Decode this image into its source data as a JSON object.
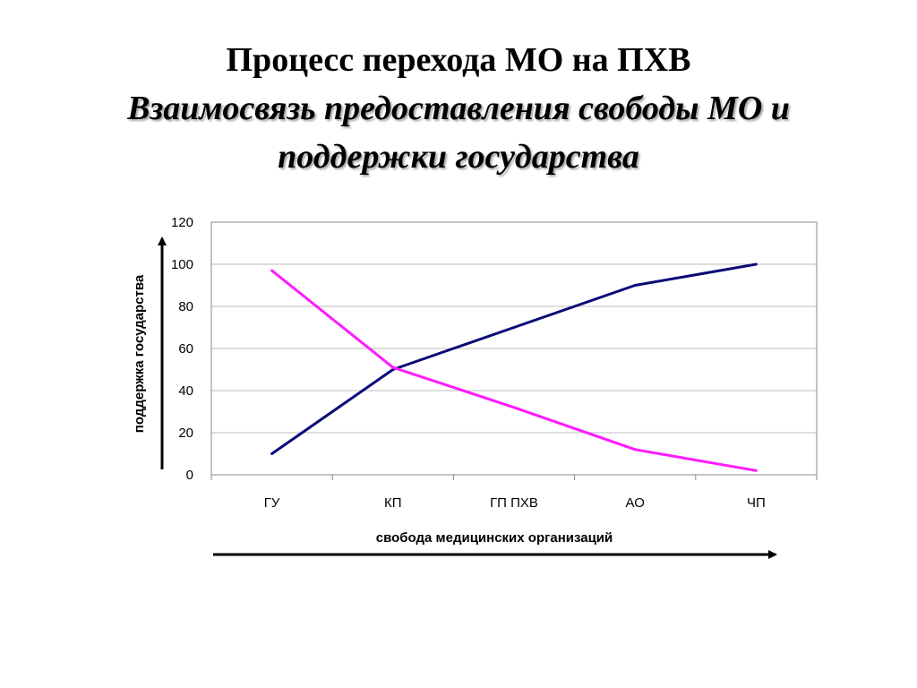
{
  "slide": {
    "title": "Процесс перехода МО на ПХВ",
    "subtitle_line1": "Взаимосвязь предоставления свободы МО и",
    "subtitle_line2": "поддержки государства"
  },
  "chart_data": {
    "type": "line",
    "categories": [
      "ГУ",
      "КП",
      "ГП ПХВ",
      "АО",
      "ЧП"
    ],
    "series": [
      {
        "values": [
          10,
          50,
          70,
          90,
          100
        ],
        "color": "#0a0a78"
      },
      {
        "values": [
          97,
          51,
          32,
          12,
          2
        ],
        "color": "#ff1aff"
      }
    ],
    "ylim": [
      0,
      120
    ],
    "yticks": [
      "0",
      "20",
      "40",
      "60",
      "80",
      "100",
      "120"
    ],
    "xlabel": "свобода медицинских организаций",
    "ylabel": "поддержка государства",
    "grid": true,
    "legend": false
  }
}
